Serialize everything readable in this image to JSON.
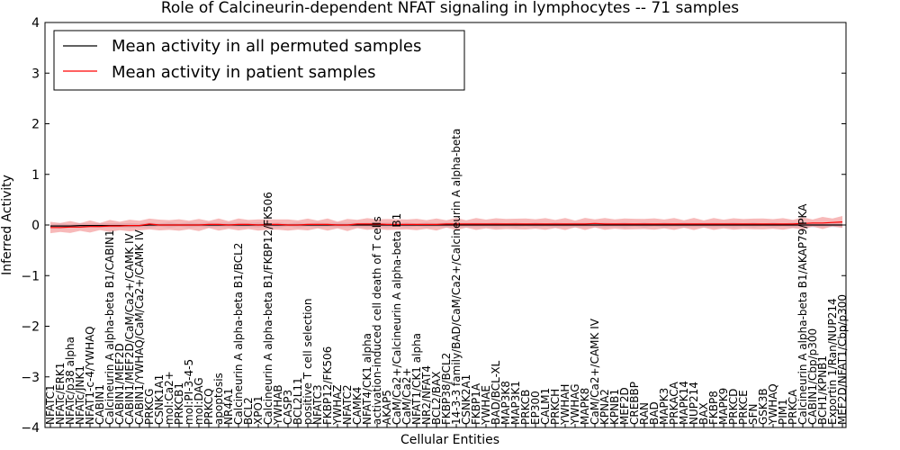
{
  "chart_data": {
    "type": "line",
    "title": "Role of Calcineurin-dependent NFAT signaling in lymphocytes -- 71 samples",
    "xlabel": "Cellular Entities",
    "ylabel": "Inferred Activity",
    "ylim": [
      -4,
      4
    ],
    "yticks": [
      "−4",
      "−3",
      "−2",
      "−1",
      "0",
      "1",
      "2",
      "3",
      "4"
    ],
    "grid": false,
    "legend_position": "top-left",
    "categories": [
      "NFATC1",
      "NFATc/ERK1",
      "NFATc/p38 alpha",
      "NFATc/JNK1",
      "NFAT1-c-4/YWHAQ",
      "CABIN1",
      "Calcineurin A alpha-beta B1/CABIN1",
      "CABIN1/MEF2D",
      "CABIN1/MEF2D/CaM/Ca2+/CAMK IV",
      "CABIN1/YWHAQ/CaM/Ca2+/CAMK IV",
      "PRKCG",
      "CSNK1A1",
      "mol:Ca2+",
      "PRKCB1",
      "mol:PI-3-4-5",
      "mol:DAG",
      "PRKCQ",
      "apoptosis",
      "NR4A1",
      "Calcineurin A alpha-beta B1/BCL2",
      "BCL2",
      "XPO1",
      "Calcineurin A alpha-beta B1/FKBP12/FK506",
      "YWHAB",
      "CASP3",
      "BCL2L11",
      "positive T cell selection",
      "NFATC3",
      "FKBP12/FK506",
      "YWHAZ",
      "NFATC2",
      "CAMK4",
      "NFAT4/CK1 alpha",
      "activation-induced cell death of T cells",
      "AKAP5",
      "CaM/Ca2+/Calcineurin A alpha-beta B1",
      "CaM/Ca2+",
      "NFAT1/CK1 alpha",
      "NR2/NFAT4",
      "BCL2/BAX",
      "FKBP38/BCL2",
      "14-3-3 family/BAD/CaM/Ca2+/Calcineurin A alpha-beta",
      "CSNK2A1",
      "FKBP1A",
      "YWHAE",
      "BAD/BCL-XL",
      "MAP3K8",
      "MAP3K1",
      "PRKCB",
      "EP300",
      "CALM1",
      "PRKCH",
      "YWHAH",
      "YWHAG",
      "MAPK8",
      "CaM/Ca2+/CAMK IV",
      "KPNA2",
      "KPNB1",
      "MEF2D",
      "CREBBP",
      "RAN",
      "BAD",
      "MAPK3",
      "PRKACA",
      "MAPK14",
      "NUP214",
      "BAX",
      "FKBP8",
      "MAPK9",
      "PRKCD",
      "PRKCE",
      "SFN",
      "GSK3B",
      "YWHAQ",
      "PIM1",
      "PRKCA",
      "Calcineurin A alpha-beta B1/AKAP79/PKA",
      "CABIN1/Cbp/p300",
      "BCH1/KPNB1",
      "Exportin 1/Ran/NUP214",
      "MEF2D/NFAT1/Cbp/p300"
    ],
    "series": [
      {
        "name": "Mean activity in all permuted samples",
        "color": "#000000",
        "values": [
          -0.02,
          -0.02,
          -0.02,
          -0.01,
          -0.01,
          -0.01,
          -0.01,
          -0.01,
          -0.01,
          -0.01,
          0.0,
          0.0,
          0.0,
          0.0,
          0.0,
          0.0,
          0.0,
          0.0,
          0.0,
          0.0,
          0.0,
          0.0,
          0.0,
          0.0,
          0.0,
          0.0,
          0.0,
          0.0,
          0.0,
          0.0,
          0.0,
          0.0,
          0.0,
          0.0,
          0.0,
          0.0,
          0.0,
          0.0,
          0.0,
          0.0,
          0.0,
          0.0,
          0.0,
          0.0,
          0.0,
          0.0,
          0.0,
          0.0,
          0.0,
          0.0,
          0.0,
          0.0,
          0.0,
          0.0,
          0.0,
          0.0,
          0.0,
          0.0,
          0.0,
          0.0,
          0.0,
          0.0,
          0.0,
          0.0,
          0.0,
          0.0,
          0.0,
          0.0,
          0.0,
          0.0,
          0.0,
          0.0,
          0.0,
          0.0,
          0.0,
          0.0,
          0.0,
          0.0,
          0.0,
          0.0,
          0.0
        ],
        "band": 0.05,
        "band_color": "#b0b0c8"
      },
      {
        "name": "Mean activity in patient samples",
        "color": "#ff0000",
        "values": [
          -0.05,
          -0.05,
          -0.04,
          -0.04,
          -0.03,
          -0.03,
          -0.02,
          -0.02,
          -0.01,
          -0.01,
          0.02,
          0.0,
          0.0,
          0.0,
          0.0,
          0.0,
          0.01,
          0.01,
          0.0,
          0.01,
          0.01,
          0.0,
          0.01,
          0.01,
          0.0,
          0.0,
          0.01,
          0.01,
          0.01,
          0.0,
          0.0,
          0.02,
          0.02,
          0.02,
          0.01,
          0.01,
          0.01,
          0.01,
          0.01,
          0.01,
          0.02,
          0.02,
          0.02,
          0.02,
          0.02,
          0.02,
          0.02,
          0.02,
          0.02,
          0.02,
          0.02,
          0.02,
          0.02,
          0.02,
          0.02,
          0.03,
          0.02,
          0.02,
          0.02,
          0.02,
          0.02,
          0.02,
          0.02,
          0.02,
          0.02,
          0.02,
          0.02,
          0.02,
          0.02,
          0.02,
          0.02,
          0.02,
          0.02,
          0.02,
          0.02,
          0.02,
          0.03,
          0.04,
          0.04,
          0.05,
          0.06
        ],
        "band": 0.12,
        "band_color": "#f08080"
      }
    ]
  }
}
